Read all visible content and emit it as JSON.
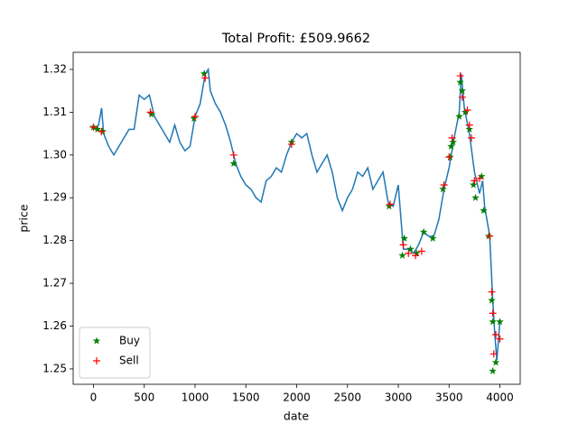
{
  "chart_data": {
    "type": "line",
    "title": "Total Profit: £509.9662",
    "xlabel": "date",
    "ylabel": "price",
    "xlim": [
      -200,
      4200
    ],
    "ylim": [
      1.2464,
      1.324
    ],
    "xticks": [
      0,
      500,
      1000,
      1500,
      2000,
      2500,
      3000,
      3500,
      4000
    ],
    "yticks": [
      1.25,
      1.26,
      1.27,
      1.28,
      1.29,
      {
        "value": 1.3,
        "label": "1.30"
      },
      1.31,
      1.32
    ],
    "legend": "lower left",
    "series": [
      {
        "type": "line",
        "color": "#1f77b4",
        "x": [
          0,
          50,
          80,
          100,
          150,
          200,
          250,
          300,
          350,
          400,
          450,
          500,
          550,
          600,
          650,
          700,
          750,
          800,
          850,
          900,
          950,
          1000,
          1050,
          1100,
          1130,
          1150,
          1200,
          1250,
          1300,
          1350,
          1400,
          1450,
          1500,
          1550,
          1600,
          1650,
          1700,
          1750,
          1800,
          1850,
          1900,
          1950,
          2000,
          2050,
          2100,
          2150,
          2200,
          2250,
          2300,
          2350,
          2400,
          2450,
          2500,
          2550,
          2600,
          2650,
          2700,
          2750,
          2800,
          2850,
          2900,
          2950,
          3000,
          3050,
          3100,
          3150,
          3200,
          3250,
          3300,
          3350,
          3400,
          3450,
          3500,
          3550,
          3600,
          3620,
          3650,
          3700,
          3750,
          3800,
          3830,
          3850,
          3900,
          3930,
          3950,
          3970,
          4000
        ],
        "values": [
          1.306,
          1.307,
          1.311,
          1.305,
          1.302,
          1.3,
          1.302,
          1.304,
          1.306,
          1.306,
          1.314,
          1.313,
          1.314,
          1.309,
          1.307,
          1.305,
          1.303,
          1.307,
          1.303,
          1.301,
          1.302,
          1.309,
          1.312,
          1.319,
          1.32,
          1.315,
          1.312,
          1.31,
          1.307,
          1.303,
          1.298,
          1.295,
          1.293,
          1.292,
          1.29,
          1.289,
          1.294,
          1.295,
          1.297,
          1.296,
          1.3,
          1.303,
          1.305,
          1.304,
          1.305,
          1.3,
          1.296,
          1.298,
          1.3,
          1.296,
          1.29,
          1.287,
          1.29,
          1.292,
          1.296,
          1.295,
          1.297,
          1.292,
          1.294,
          1.296,
          1.289,
          1.288,
          1.293,
          1.278,
          1.278,
          1.277,
          1.279,
          1.282,
          1.281,
          1.281,
          1.285,
          1.292,
          1.297,
          1.304,
          1.31,
          1.319,
          1.311,
          1.305,
          1.296,
          1.291,
          1.294,
          1.288,
          1.281,
          1.266,
          1.258,
          1.252,
          1.261
        ]
      },
      {
        "type": "scatter",
        "name": "Buy",
        "color": "#008000",
        "marker": "star",
        "x": [
          0,
          40,
          90,
          570,
          990,
          1090,
          1380,
          1950,
          2910,
          3040,
          3060,
          3120,
          3180,
          3250,
          3340,
          3440,
          3510,
          3520,
          3540,
          3600,
          3610,
          3630,
          3660,
          3700,
          3740,
          3760,
          3820,
          3840,
          3890,
          3920,
          3930,
          3930,
          3960,
          4000
        ],
        "values": [
          1.3065,
          1.306,
          1.3055,
          1.3095,
          1.3085,
          1.319,
          1.298,
          1.303,
          1.288,
          1.2765,
          1.2805,
          1.278,
          1.277,
          1.282,
          1.2805,
          1.292,
          1.2995,
          1.302,
          1.303,
          1.309,
          1.317,
          1.315,
          1.31,
          1.306,
          1.293,
          1.29,
          1.295,
          1.287,
          1.281,
          1.266,
          1.261,
          1.2495,
          1.2515,
          1.261
        ]
      },
      {
        "type": "scatter",
        "name": "Sell",
        "color": "#ff0000",
        "marker": "plus",
        "x": [
          0,
          80,
          560,
          1000,
          1100,
          1380,
          1950,
          2920,
          3050,
          3100,
          3170,
          3230,
          3450,
          3500,
          3530,
          3610,
          3630,
          3680,
          3700,
          3720,
          3750,
          3800,
          3900,
          3920,
          3930,
          3940,
          3960,
          4000
        ],
        "values": [
          1.3065,
          1.3055,
          1.31,
          1.309,
          1.318,
          1.3,
          1.3025,
          1.2885,
          1.279,
          1.277,
          1.2765,
          1.2775,
          1.293,
          1.2995,
          1.304,
          1.3185,
          1.3135,
          1.3105,
          1.307,
          1.304,
          1.294,
          1.2945,
          1.281,
          1.268,
          1.263,
          1.2535,
          1.258,
          1.257
        ]
      }
    ]
  }
}
